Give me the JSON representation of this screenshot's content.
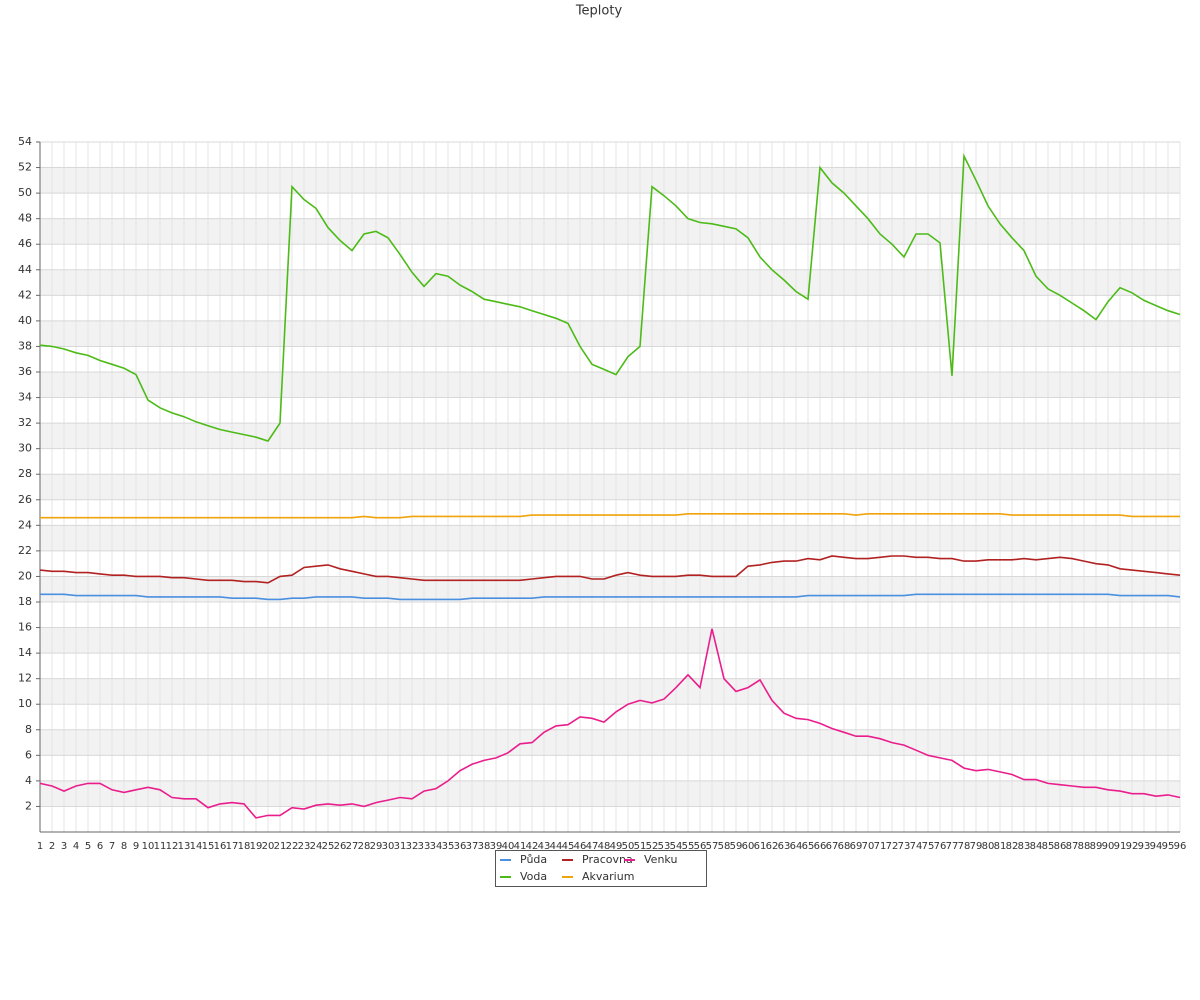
{
  "chart_data": {
    "type": "line",
    "title": "Teploty",
    "categories": [
      1,
      2,
      3,
      4,
      5,
      6,
      7,
      8,
      9,
      10,
      11,
      12,
      13,
      14,
      15,
      16,
      17,
      18,
      19,
      20,
      21,
      22,
      23,
      24,
      25,
      26,
      27,
      28,
      29,
      30,
      31,
      32,
      33,
      34,
      35,
      36,
      37,
      38,
      39,
      40,
      41,
      42,
      43,
      44,
      45,
      46,
      47,
      48,
      49,
      50,
      51,
      52,
      53,
      54,
      55,
      56,
      57,
      58,
      59,
      60,
      61,
      62,
      63,
      64,
      65,
      66,
      67,
      68,
      69,
      70,
      71,
      72,
      73,
      74,
      75,
      76,
      77,
      78,
      79,
      80,
      81,
      82,
      83,
      84,
      85,
      86,
      87,
      88,
      89,
      90,
      91,
      92,
      93,
      94,
      95,
      96
    ],
    "ylim": [
      0,
      54
    ],
    "yticks": [
      2,
      4,
      6,
      8,
      10,
      12,
      14,
      16,
      18,
      20,
      22,
      24,
      26,
      28,
      30,
      32,
      34,
      36,
      38,
      40,
      42,
      44,
      46,
      48,
      50,
      52,
      54
    ],
    "grid": true,
    "series": [
      {
        "name": "Půda",
        "color": "#4a8fe0",
        "values": [
          18.6,
          18.6,
          18.6,
          18.5,
          18.5,
          18.5,
          18.5,
          18.5,
          18.5,
          18.4,
          18.4,
          18.4,
          18.4,
          18.4,
          18.4,
          18.4,
          18.3,
          18.3,
          18.3,
          18.2,
          18.2,
          18.3,
          18.3,
          18.4,
          18.4,
          18.4,
          18.4,
          18.3,
          18.3,
          18.3,
          18.2,
          18.2,
          18.2,
          18.2,
          18.2,
          18.2,
          18.3,
          18.3,
          18.3,
          18.3,
          18.3,
          18.3,
          18.4,
          18.4,
          18.4,
          18.4,
          18.4,
          18.4,
          18.4,
          18.4,
          18.4,
          18.4,
          18.4,
          18.4,
          18.4,
          18.4,
          18.4,
          18.4,
          18.4,
          18.4,
          18.4,
          18.4,
          18.4,
          18.4,
          18.5,
          18.5,
          18.5,
          18.5,
          18.5,
          18.5,
          18.5,
          18.5,
          18.5,
          18.6,
          18.6,
          18.6,
          18.6,
          18.6,
          18.6,
          18.6,
          18.6,
          18.6,
          18.6,
          18.6,
          18.6,
          18.6,
          18.6,
          18.6,
          18.6,
          18.6,
          18.5,
          18.5,
          18.5,
          18.5,
          18.5,
          18.4
        ]
      },
      {
        "name": "Voda",
        "color": "#4cbb17",
        "values": [
          38.1,
          38.0,
          37.8,
          37.5,
          37.3,
          36.9,
          36.6,
          36.3,
          35.8,
          33.8,
          33.2,
          32.8,
          32.5,
          32.1,
          31.8,
          31.5,
          31.3,
          31.1,
          30.9,
          30.6,
          32.0,
          50.5,
          49.5,
          48.8,
          47.3,
          46.3,
          45.5,
          46.8,
          47.0,
          46.5,
          45.2,
          43.8,
          42.7,
          43.7,
          43.5,
          42.8,
          42.3,
          41.7,
          41.5,
          41.3,
          41.1,
          40.8,
          40.5,
          40.2,
          39.8,
          38.0,
          36.6,
          36.2,
          35.8,
          37.2,
          38.0,
          50.5,
          49.8,
          49.0,
          48.0,
          47.7,
          47.6,
          47.4,
          47.2,
          46.5,
          45.0,
          44.0,
          43.2,
          42.3,
          41.7,
          52.0,
          50.8,
          50.0,
          49.0,
          48.0,
          46.8,
          46.0,
          45.0,
          46.8,
          46.8,
          46.1,
          35.7,
          52.9,
          51.0,
          49.0,
          47.6,
          46.5,
          45.5,
          43.5,
          42.5,
          42.0,
          41.4,
          40.8,
          40.1,
          41.5,
          42.6,
          42.2,
          41.6,
          41.2,
          40.8,
          40.5
        ]
      },
      {
        "name": "Pracovna",
        "color": "#b22222",
        "values": [
          20.5,
          20.4,
          20.4,
          20.3,
          20.3,
          20.2,
          20.1,
          20.1,
          20.0,
          20.0,
          20.0,
          19.9,
          19.9,
          19.8,
          19.7,
          19.7,
          19.7,
          19.6,
          19.6,
          19.5,
          20.0,
          20.1,
          20.7,
          20.8,
          20.9,
          20.6,
          20.4,
          20.2,
          20.0,
          20.0,
          19.9,
          19.8,
          19.7,
          19.7,
          19.7,
          19.7,
          19.7,
          19.7,
          19.7,
          19.7,
          19.7,
          19.8,
          19.9,
          20.0,
          20.0,
          20.0,
          19.8,
          19.8,
          20.1,
          20.3,
          20.1,
          20.0,
          20.0,
          20.0,
          20.1,
          20.1,
          20.0,
          20.0,
          20.0,
          20.8,
          20.9,
          21.1,
          21.2,
          21.2,
          21.4,
          21.3,
          21.6,
          21.5,
          21.4,
          21.4,
          21.5,
          21.6,
          21.6,
          21.5,
          21.5,
          21.4,
          21.4,
          21.2,
          21.2,
          21.3,
          21.3,
          21.3,
          21.4,
          21.3,
          21.4,
          21.5,
          21.4,
          21.2,
          21.0,
          20.9,
          20.6,
          20.5,
          20.4,
          20.3,
          20.2,
          20.1
        ]
      },
      {
        "name": "Akvarium",
        "color": "#f0a30a",
        "values": [
          24.6,
          24.6,
          24.6,
          24.6,
          24.6,
          24.6,
          24.6,
          24.6,
          24.6,
          24.6,
          24.6,
          24.6,
          24.6,
          24.6,
          24.6,
          24.6,
          24.6,
          24.6,
          24.6,
          24.6,
          24.6,
          24.6,
          24.6,
          24.6,
          24.6,
          24.6,
          24.6,
          24.7,
          24.6,
          24.6,
          24.6,
          24.7,
          24.7,
          24.7,
          24.7,
          24.7,
          24.7,
          24.7,
          24.7,
          24.7,
          24.7,
          24.8,
          24.8,
          24.8,
          24.8,
          24.8,
          24.8,
          24.8,
          24.8,
          24.8,
          24.8,
          24.8,
          24.8,
          24.8,
          24.9,
          24.9,
          24.9,
          24.9,
          24.9,
          24.9,
          24.9,
          24.9,
          24.9,
          24.9,
          24.9,
          24.9,
          24.9,
          24.9,
          24.8,
          24.9,
          24.9,
          24.9,
          24.9,
          24.9,
          24.9,
          24.9,
          24.9,
          24.9,
          24.9,
          24.9,
          24.9,
          24.8,
          24.8,
          24.8,
          24.8,
          24.8,
          24.8,
          24.8,
          24.8,
          24.8,
          24.8,
          24.7,
          24.7,
          24.7,
          24.7,
          24.7
        ]
      },
      {
        "name": "Venku",
        "color": "#e91e8c",
        "values": [
          3.8,
          3.6,
          3.2,
          3.6,
          3.8,
          3.8,
          3.3,
          3.1,
          3.3,
          3.5,
          3.3,
          2.7,
          2.6,
          2.6,
          1.9,
          2.2,
          2.3,
          2.2,
          1.1,
          1.3,
          1.3,
          1.9,
          1.8,
          2.1,
          2.2,
          2.1,
          2.2,
          2.0,
          2.3,
          2.5,
          2.7,
          2.6,
          3.2,
          3.4,
          4.0,
          4.8,
          5.3,
          5.6,
          5.8,
          6.2,
          6.9,
          7.0,
          7.8,
          8.3,
          8.4,
          9.0,
          8.9,
          8.6,
          9.4,
          10.0,
          10.3,
          10.1,
          10.4,
          11.3,
          12.3,
          11.3,
          15.9,
          12.0,
          11.0,
          11.3,
          11.9,
          10.3,
          9.3,
          8.9,
          8.8,
          8.5,
          8.1,
          7.8,
          7.5,
          7.5,
          7.3,
          7.0,
          6.8,
          6.4,
          6.0,
          5.8,
          5.6,
          5.0,
          4.8,
          4.9,
          4.7,
          4.5,
          4.1,
          4.1,
          3.8,
          3.7,
          3.6,
          3.5,
          3.5,
          3.3,
          3.2,
          3.0,
          3.0,
          2.8,
          2.9,
          2.7
        ]
      }
    ]
  }
}
